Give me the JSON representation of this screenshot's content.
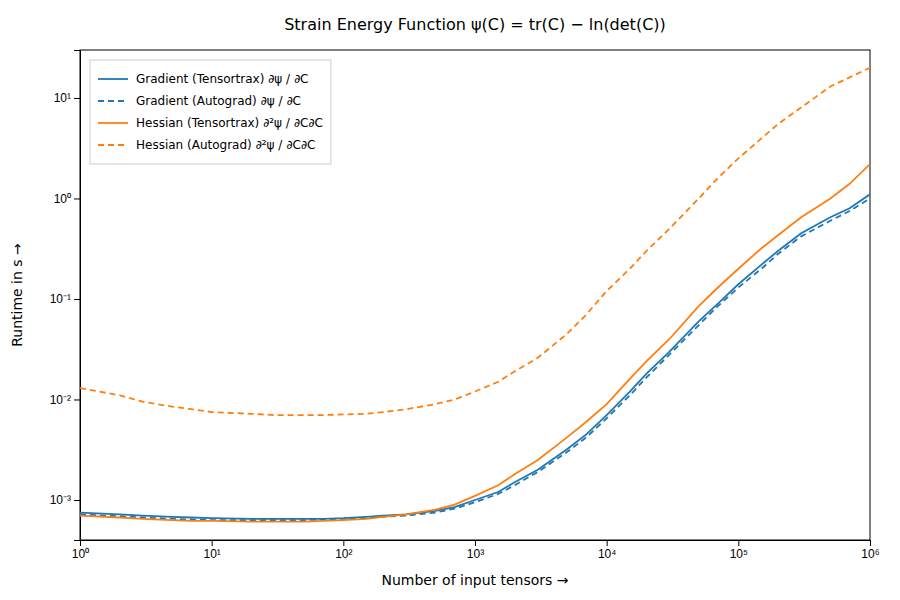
{
  "chart_data": {
    "type": "line",
    "title": "Strain Energy Function ψ(C) = tr(C) − ln(det(C))",
    "x_label": "Number of input tensors →",
    "y_label": "Runtime in s →",
    "log": true,
    "grid": false,
    "legend": "upper left",
    "xlim": [
      1,
      1000000
    ],
    "ylim": [
      0.0004,
      30
    ],
    "xticks": [
      {
        "value": 1,
        "label": "10⁰"
      },
      {
        "value": 10,
        "label": "10¹"
      },
      {
        "value": 100,
        "label": "10²"
      },
      {
        "value": 1000,
        "label": "10³"
      },
      {
        "value": 10000,
        "label": "10⁴"
      },
      {
        "value": 100000,
        "label": "10⁵"
      },
      {
        "value": 1000000,
        "label": "10⁶"
      }
    ],
    "yticks": [
      {
        "value": 0.001,
        "label": "10⁻³"
      },
      {
        "value": 0.01,
        "label": "10⁻²"
      },
      {
        "value": 0.1,
        "label": "10⁻¹"
      },
      {
        "value": 1,
        "label": "10⁰"
      },
      {
        "value": 10,
        "label": "10¹"
      }
    ],
    "series": [
      {
        "name": "Gradient (Tensortrax) ∂ψ / ∂C",
        "color": "#1f77b4",
        "line_style": "solid",
        "x": [
          1,
          2,
          3,
          5,
          7,
          10,
          20,
          30,
          50,
          70,
          100,
          150,
          200,
          300,
          500,
          700,
          1000,
          1500,
          2000,
          3000,
          5000,
          7000,
          10000,
          15000,
          20000,
          30000,
          50000,
          70000,
          100000,
          150000,
          200000,
          300000,
          500000,
          700000,
          1000000
        ],
        "values": [
          0.00075,
          0.00072,
          0.0007,
          0.00068,
          0.00067,
          0.00066,
          0.00065,
          0.00065,
          0.00065,
          0.00065,
          0.00066,
          0.00068,
          0.0007,
          0.00072,
          0.00078,
          0.00085,
          0.001,
          0.0012,
          0.0015,
          0.002,
          0.0032,
          0.0045,
          0.007,
          0.012,
          0.018,
          0.03,
          0.06,
          0.09,
          0.14,
          0.22,
          0.3,
          0.45,
          0.65,
          0.8,
          1.1
        ]
      },
      {
        "name": "Gradient (Autograd) ∂ψ / ∂C",
        "color": "#1f77b4",
        "line_style": "dashed",
        "x": [
          1,
          2,
          3,
          5,
          7,
          10,
          20,
          30,
          50,
          70,
          100,
          150,
          200,
          300,
          500,
          700,
          1000,
          1500,
          2000,
          3000,
          5000,
          7000,
          10000,
          15000,
          20000,
          30000,
          50000,
          70000,
          100000,
          150000,
          200000,
          300000,
          500000,
          700000,
          1000000
        ],
        "values": [
          0.00072,
          0.00069,
          0.00067,
          0.00065,
          0.00064,
          0.00063,
          0.00063,
          0.00063,
          0.00063,
          0.00064,
          0.00065,
          0.00066,
          0.00068,
          0.0007,
          0.00075,
          0.00082,
          0.00095,
          0.00115,
          0.0014,
          0.0019,
          0.003,
          0.0042,
          0.0065,
          0.011,
          0.0165,
          0.028,
          0.055,
          0.085,
          0.13,
          0.2,
          0.28,
          0.42,
          0.6,
          0.75,
          1.0
        ]
      },
      {
        "name": "Hessian (Tensortrax) ∂²ψ / ∂C∂C",
        "color": "#ff7f0e",
        "line_style": "solid",
        "x": [
          1,
          2,
          3,
          5,
          7,
          10,
          20,
          30,
          50,
          70,
          100,
          150,
          200,
          300,
          500,
          700,
          1000,
          1500,
          2000,
          3000,
          5000,
          7000,
          10000,
          15000,
          20000,
          30000,
          50000,
          70000,
          100000,
          150000,
          200000,
          300000,
          500000,
          700000,
          1000000
        ],
        "values": [
          0.0007,
          0.00067,
          0.00065,
          0.00063,
          0.00062,
          0.00062,
          0.00061,
          0.00061,
          0.00061,
          0.00062,
          0.00063,
          0.00065,
          0.00068,
          0.00072,
          0.0008,
          0.0009,
          0.0011,
          0.0014,
          0.0018,
          0.0025,
          0.0042,
          0.006,
          0.009,
          0.016,
          0.024,
          0.04,
          0.085,
          0.13,
          0.2,
          0.32,
          0.43,
          0.65,
          1.0,
          1.4,
          2.2
        ]
      },
      {
        "name": "Hessian (Autograd) ∂²ψ / ∂C∂C",
        "color": "#ff7f0e",
        "line_style": "dashed",
        "x": [
          1,
          2,
          3,
          5,
          7,
          10,
          20,
          30,
          50,
          70,
          100,
          150,
          200,
          300,
          500,
          700,
          1000,
          1500,
          2000,
          3000,
          5000,
          7000,
          10000,
          15000,
          20000,
          30000,
          50000,
          70000,
          100000,
          200000,
          500000,
          1000000
        ],
        "values": [
          0.013,
          0.011,
          0.0095,
          0.0085,
          0.008,
          0.0075,
          0.0072,
          0.007,
          0.007,
          0.007,
          0.0071,
          0.0072,
          0.0075,
          0.008,
          0.009,
          0.01,
          0.012,
          0.015,
          0.019,
          0.026,
          0.045,
          0.07,
          0.12,
          0.2,
          0.3,
          0.5,
          1.0,
          1.6,
          2.5,
          5.5,
          13,
          20
        ]
      }
    ]
  }
}
